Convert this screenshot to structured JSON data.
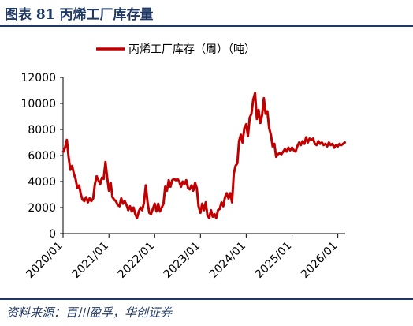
{
  "figure": {
    "title": "图表 81  丙烯工厂库存量",
    "source": "资料来源：百川盈孚，华创证券"
  },
  "colors": {
    "accent": "#1f3864",
    "series": "#c00000"
  },
  "chart_data": {
    "type": "line",
    "title": "",
    "xlabel": "",
    "ylabel": "",
    "legend": "top-center",
    "grid": false,
    "ylim": [
      0,
      12000
    ],
    "yticks": [
      0,
      2000,
      4000,
      6000,
      8000,
      10000,
      12000
    ],
    "ytick_labels": [
      "0",
      "2000",
      "4000",
      "6000",
      "8000",
      "10000",
      "12000"
    ],
    "xlim": [
      "2020-01",
      "2026-03"
    ],
    "xticks": [
      "2020-01",
      "2021-01",
      "2022-01",
      "2023-01",
      "2024-01",
      "2025-01",
      "2026-01"
    ],
    "xtick_labels": [
      "2020/01",
      "2021/01",
      "2022/01",
      "2023/01",
      "2024/01",
      "2025/01",
      "2026/01"
    ],
    "series": [
      {
        "name": "丙烯工厂库存（周）（吨）",
        "points": [
          [
            "2020-01-03",
            6300
          ],
          [
            "2020-01-17",
            6600
          ],
          [
            "2020-01-31",
            7200
          ],
          [
            "2020-02-14",
            5900
          ],
          [
            "2020-02-28",
            4900
          ],
          [
            "2020-03-13",
            5200
          ],
          [
            "2020-03-27",
            4600
          ],
          [
            "2020-04-10",
            4200
          ],
          [
            "2020-04-24",
            3500
          ],
          [
            "2020-05-08",
            3700
          ],
          [
            "2020-05-22",
            3000
          ],
          [
            "2020-06-05",
            2600
          ],
          [
            "2020-06-19",
            2500
          ],
          [
            "2020-07-03",
            2800
          ],
          [
            "2020-07-17",
            2400
          ],
          [
            "2020-07-31",
            2700
          ],
          [
            "2020-08-14",
            2500
          ],
          [
            "2020-08-28",
            2700
          ],
          [
            "2020-09-11",
            3800
          ],
          [
            "2020-09-25",
            4400
          ],
          [
            "2020-10-09",
            4100
          ],
          [
            "2020-10-23",
            3800
          ],
          [
            "2020-11-06",
            4300
          ],
          [
            "2020-11-20",
            4200
          ],
          [
            "2020-12-04",
            5500
          ],
          [
            "2020-12-18",
            4300
          ],
          [
            "2021-01-01",
            3300
          ],
          [
            "2021-01-15",
            3900
          ],
          [
            "2021-01-29",
            2800
          ],
          [
            "2021-02-12",
            2600
          ],
          [
            "2021-02-26",
            2500
          ],
          [
            "2021-03-12",
            2200
          ],
          [
            "2021-03-26",
            2100
          ],
          [
            "2021-04-09",
            2700
          ],
          [
            "2021-04-23",
            2300
          ],
          [
            "2021-05-07",
            2500
          ],
          [
            "2021-05-21",
            2200
          ],
          [
            "2021-06-04",
            1800
          ],
          [
            "2021-06-18",
            2100
          ],
          [
            "2021-07-02",
            1700
          ],
          [
            "2021-07-16",
            2000
          ],
          [
            "2021-07-30",
            1500
          ],
          [
            "2021-08-13",
            1200
          ],
          [
            "2021-08-27",
            1700
          ],
          [
            "2021-09-10",
            2000
          ],
          [
            "2021-09-24",
            1800
          ],
          [
            "2021-10-08",
            2400
          ],
          [
            "2021-10-22",
            3700
          ],
          [
            "2021-11-05",
            2400
          ],
          [
            "2021-11-19",
            1600
          ],
          [
            "2021-12-03",
            1500
          ],
          [
            "2021-12-17",
            1900
          ],
          [
            "2022-01-01",
            2300
          ],
          [
            "2022-01-15",
            1700
          ],
          [
            "2022-01-29",
            2300
          ],
          [
            "2022-02-12",
            1700
          ],
          [
            "2022-02-26",
            2000
          ],
          [
            "2022-03-12",
            2300
          ],
          [
            "2022-03-26",
            3600
          ],
          [
            "2022-04-09",
            3300
          ],
          [
            "2022-04-23",
            4100
          ],
          [
            "2022-05-07",
            3600
          ],
          [
            "2022-05-21",
            4100
          ],
          [
            "2022-06-04",
            4200
          ],
          [
            "2022-06-18",
            4100
          ],
          [
            "2022-07-02",
            4200
          ],
          [
            "2022-07-16",
            4000
          ],
          [
            "2022-07-30",
            3600
          ],
          [
            "2022-08-13",
            4000
          ],
          [
            "2022-08-27",
            3800
          ],
          [
            "2022-09-10",
            4100
          ],
          [
            "2022-09-24",
            3500
          ],
          [
            "2022-10-08",
            3400
          ],
          [
            "2022-10-22",
            3700
          ],
          [
            "2022-11-05",
            3300
          ],
          [
            "2022-11-19",
            3900
          ],
          [
            "2022-12-03",
            3500
          ],
          [
            "2022-12-17",
            2100
          ],
          [
            "2023-01-01",
            1600
          ],
          [
            "2023-01-15",
            2300
          ],
          [
            "2023-01-29",
            1800
          ],
          [
            "2023-02-12",
            2400
          ],
          [
            "2023-02-26",
            1400
          ],
          [
            "2023-03-12",
            1200
          ],
          [
            "2023-03-26",
            1800
          ],
          [
            "2023-04-09",
            1300
          ],
          [
            "2023-04-23",
            1500
          ],
          [
            "2023-05-07",
            1200
          ],
          [
            "2023-05-21",
            1800
          ],
          [
            "2023-06-04",
            1900
          ],
          [
            "2023-06-18",
            2400
          ],
          [
            "2023-07-02",
            2100
          ],
          [
            "2023-07-16",
            2800
          ],
          [
            "2023-07-30",
            3100
          ],
          [
            "2023-08-13",
            2700
          ],
          [
            "2023-08-27",
            3100
          ],
          [
            "2023-09-10",
            2400
          ],
          [
            "2023-09-24",
            4600
          ],
          [
            "2023-10-08",
            5200
          ],
          [
            "2023-10-22",
            5400
          ],
          [
            "2023-11-05",
            7100
          ],
          [
            "2023-11-19",
            7600
          ],
          [
            "2023-12-03",
            7000
          ],
          [
            "2023-12-17",
            8100
          ],
          [
            "2024-01-01",
            8400
          ],
          [
            "2024-01-15",
            7500
          ],
          [
            "2024-01-29",
            8900
          ],
          [
            "2024-02-12",
            9200
          ],
          [
            "2024-02-26",
            10300
          ],
          [
            "2024-03-12",
            10800
          ],
          [
            "2024-03-26",
            8800
          ],
          [
            "2024-04-09",
            9500
          ],
          [
            "2024-04-23",
            8500
          ],
          [
            "2024-05-07",
            9100
          ],
          [
            "2024-05-21",
            10400
          ],
          [
            "2024-06-04",
            9200
          ],
          [
            "2024-06-18",
            9400
          ],
          [
            "2024-07-02",
            8100
          ],
          [
            "2024-07-16",
            7600
          ],
          [
            "2024-07-30",
            6700
          ],
          [
            "2024-08-13",
            6900
          ],
          [
            "2024-08-27",
            5900
          ],
          [
            "2024-09-10",
            6100
          ],
          [
            "2024-09-24",
            6200
          ],
          [
            "2024-10-08",
            6100
          ],
          [
            "2024-10-22",
            6300
          ],
          [
            "2024-11-05",
            6500
          ],
          [
            "2024-11-19",
            6300
          ],
          [
            "2024-12-03",
            6600
          ],
          [
            "2024-12-17",
            6400
          ],
          [
            "2025-01-01",
            6600
          ],
          [
            "2025-01-15",
            6400
          ],
          [
            "2025-01-29",
            6300
          ],
          [
            "2025-02-12",
            6700
          ],
          [
            "2025-02-26",
            7000
          ],
          [
            "2025-03-12",
            6800
          ],
          [
            "2025-03-26",
            7100
          ],
          [
            "2025-04-09",
            6900
          ],
          [
            "2025-04-23",
            7400
          ],
          [
            "2025-05-07",
            7000
          ],
          [
            "2025-05-21",
            7300
          ],
          [
            "2025-06-04",
            7200
          ],
          [
            "2025-06-18",
            7300
          ],
          [
            "2025-07-02",
            6900
          ],
          [
            "2025-07-16",
            6800
          ],
          [
            "2025-07-30",
            7100
          ],
          [
            "2025-08-13",
            6900
          ],
          [
            "2025-08-27",
            7000
          ],
          [
            "2025-09-10",
            6800
          ],
          [
            "2025-09-24",
            6900
          ],
          [
            "2025-10-08",
            6700
          ],
          [
            "2025-10-22",
            7000
          ],
          [
            "2025-11-05",
            6800
          ],
          [
            "2025-11-19",
            6900
          ],
          [
            "2025-12-03",
            6600
          ],
          [
            "2025-12-17",
            6800
          ],
          [
            "2026-01-01",
            6700
          ],
          [
            "2026-01-15",
            6900
          ],
          [
            "2026-01-29",
            6800
          ],
          [
            "2026-02-12",
            6900
          ],
          [
            "2026-02-26",
            7000
          ]
        ]
      }
    ]
  }
}
